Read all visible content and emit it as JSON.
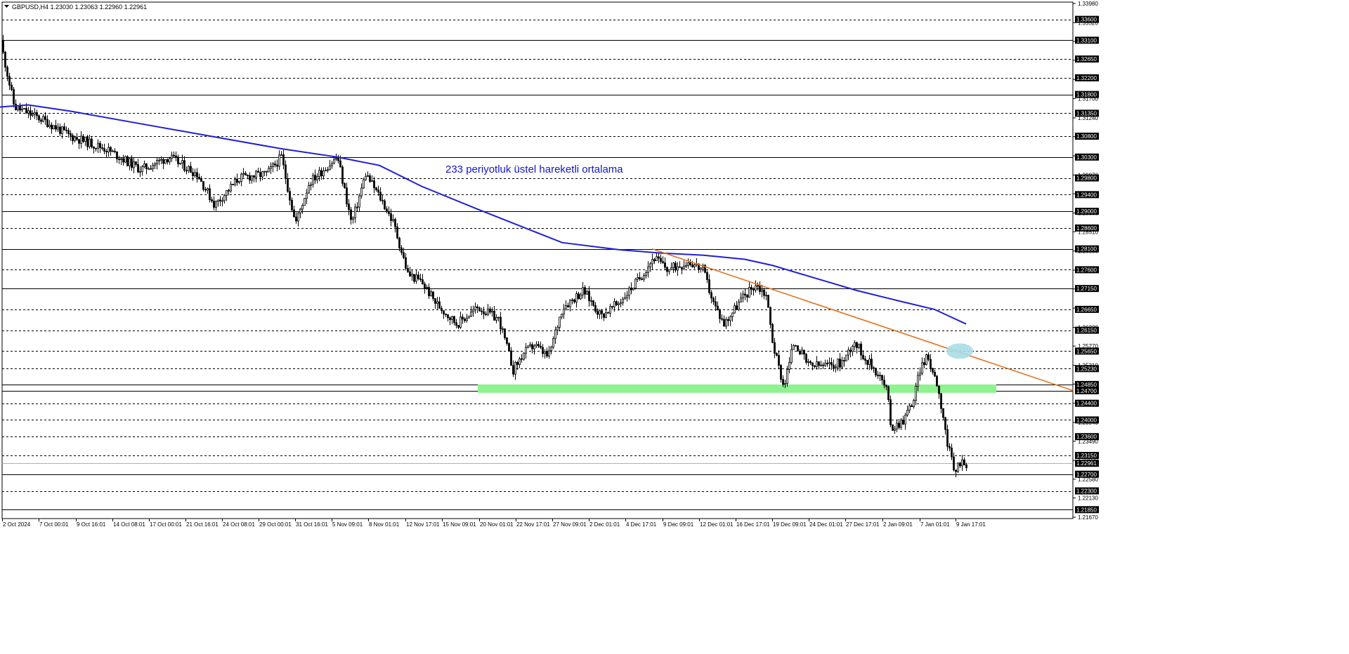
{
  "chart_data": {
    "type": "candlestick",
    "symbol_line": {
      "symbol": "GBPUSD,H4",
      "ohlc": [
        "1.23030",
        "1.23063",
        "1.22960",
        "1.22961"
      ]
    },
    "annotation": "233 periyotluk üstel hareketli ortalama",
    "current_price": "1.22961",
    "ylim": [
      1.2167,
      1.3398
    ],
    "price_scale_ticks": [
      "1.33980",
      "1.33520",
      "1.33070",
      "1.32620",
      "1.32160",
      "1.31700",
      "1.31240",
      "1.30790",
      "1.30330",
      "1.29870",
      "1.29420",
      "1.28960",
      "1.28510",
      "1.28050",
      "1.27590",
      "1.27140",
      "1.26680",
      "1.26220",
      "1.25770",
      "1.25310",
      "1.24860",
      "1.24400",
      "1.23940",
      "1.23490",
      "1.23030",
      "1.22580",
      "1.22130",
      "1.21670"
    ],
    "level_labels": [
      "1.33600",
      "1.33100",
      "1.32650",
      "1.32200",
      "1.31800",
      "1.31350",
      "1.30800",
      "1.30300",
      "1.29800",
      "1.29400",
      "1.29000",
      "1.28600",
      "1.28100",
      "1.27600",
      "1.27150",
      "1.26650",
      "1.26150",
      "1.25650",
      "1.25230",
      "1.24850",
      "1.24700",
      "1.24400",
      "1.24000",
      "1.23600",
      "1.23150",
      "1.22700",
      "1.22300",
      "1.21850"
    ],
    "time_labels": [
      "2 Oct 2024",
      "7 Oct 00:01",
      "9 Oct 16:01",
      "14 Oct 08:01",
      "17 Oct 00:01",
      "21 Oct 16:01",
      "24 Oct 08:01",
      "29 Oct 00:01",
      "31 Oct 16:01",
      "5 Nov 09:01",
      "8 Nov 01:01",
      "12 Nov 17:01",
      "15 Nov 09:01",
      "20 Nov 01:01",
      "22 Nov 17:01",
      "27 Nov 09:01",
      "2 Dec 01:01",
      "4 Dec 17:01",
      "9 Dec 09:01",
      "12 Dec 01:01",
      "16 Dec 17:01",
      "19 Dec 09:01",
      "24 Dec 01:01",
      "27 Dec 17:01",
      "2 Jan 09:01",
      "7 Jan 01:01",
      "9 Jan 17:01"
    ],
    "price_path": [
      [
        0,
        1.331
      ],
      [
        20,
        1.315
      ],
      [
        60,
        1.312
      ],
      [
        100,
        1.308
      ],
      [
        150,
        1.305
      ],
      [
        200,
        1.3
      ],
      [
        240,
        1.303
      ],
      [
        280,
        1.299
      ],
      [
        305,
        1.2915
      ],
      [
        340,
        1.298
      ],
      [
        380,
        1.299
      ],
      [
        400,
        1.303
      ],
      [
        420,
        1.287
      ],
      [
        440,
        1.297
      ],
      [
        480,
        1.303
      ],
      [
        500,
        1.287
      ],
      [
        520,
        1.299
      ],
      [
        545,
        1.292
      ],
      [
        560,
        1.287
      ],
      [
        580,
        1.275
      ],
      [
        600,
        1.273
      ],
      [
        620,
        1.268
      ],
      [
        650,
        1.263
      ],
      [
        680,
        1.267
      ],
      [
        710,
        1.264
      ],
      [
        730,
        1.252
      ],
      [
        745,
        1.256
      ],
      [
        760,
        1.258
      ],
      [
        780,
        1.255
      ],
      [
        800,
        1.267
      ],
      [
        830,
        1.271
      ],
      [
        855,
        1.265
      ],
      [
        880,
        1.268
      ],
      [
        910,
        1.274
      ],
      [
        930,
        1.279
      ],
      [
        950,
        1.276
      ],
      [
        980,
        1.278
      ],
      [
        1000,
        1.276
      ],
      [
        1015,
        1.268
      ],
      [
        1030,
        1.263
      ],
      [
        1055,
        1.269
      ],
      [
        1075,
        1.2725
      ],
      [
        1090,
        1.27
      ],
      [
        1100,
        1.258
      ],
      [
        1115,
        1.248
      ],
      [
        1130,
        1.259
      ],
      [
        1150,
        1.253
      ],
      [
        1180,
        1.253
      ],
      [
        1200,
        1.254
      ],
      [
        1215,
        1.259
      ],
      [
        1230,
        1.255
      ],
      [
        1250,
        1.251
      ],
      [
        1262,
        1.247
      ],
      [
        1268,
        1.238
      ],
      [
        1285,
        1.24
      ],
      [
        1300,
        1.245
      ],
      [
        1310,
        1.253
      ],
      [
        1320,
        1.255
      ],
      [
        1333,
        1.249
      ],
      [
        1342,
        1.241
      ],
      [
        1348,
        1.234
      ],
      [
        1353,
        1.231
      ],
      [
        1358,
        1.227
      ],
      [
        1365,
        1.23
      ],
      [
        1375,
        1.2296
      ]
    ],
    "ema_233": [
      [
        0,
        1.315
      ],
      [
        40,
        1.3155
      ],
      [
        100,
        1.314
      ],
      [
        200,
        1.311
      ],
      [
        300,
        1.308
      ],
      [
        400,
        1.305
      ],
      [
        480,
        1.303
      ],
      [
        540,
        1.301
      ],
      [
        600,
        1.296
      ],
      [
        680,
        1.2905
      ],
      [
        740,
        1.2865
      ],
      [
        800,
        1.2825
      ],
      [
        880,
        1.2808
      ],
      [
        940,
        1.28
      ],
      [
        1000,
        1.2795
      ],
      [
        1060,
        1.2785
      ],
      [
        1100,
        1.277
      ],
      [
        1160,
        1.274
      ],
      [
        1220,
        1.271
      ],
      [
        1280,
        1.2685
      ],
      [
        1330,
        1.2665
      ],
      [
        1375,
        1.263
      ]
    ],
    "trendline": [
      [
        928,
        1.281
      ],
      [
        1528,
        1.247
      ]
    ],
    "support_zone": [
      1.247,
      1.2485
    ],
    "highlight_point": [
      1366,
      1.2565
    ],
    "colors": {
      "candles": "#000000",
      "ema": "#1f1fd6",
      "trendline": "#e0731f",
      "support_zone": "#8ef28e",
      "highlight": "#a9dde6",
      "annotation": "#1515cc",
      "label_box": "#000000",
      "label_text": "#ffffff",
      "grid": "#000000"
    }
  }
}
